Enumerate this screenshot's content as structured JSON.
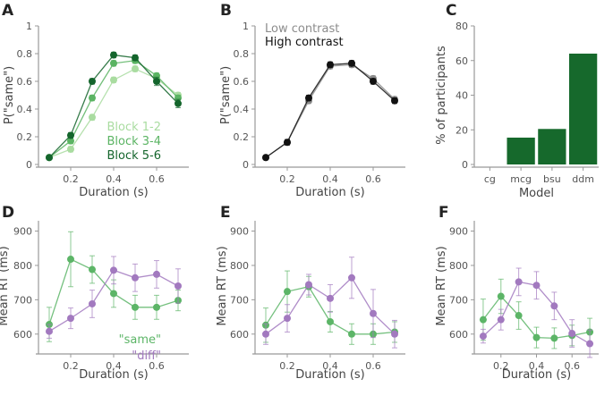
{
  "chart_data": [
    {
      "id": "A",
      "type": "line",
      "panel_label": "A",
      "xlabel": "Duration (s)",
      "ylabel": "P(\"same\")",
      "xlim": [
        0.05,
        0.75
      ],
      "ylim": [
        0,
        1
      ],
      "xticks": [
        0.2,
        0.4,
        0.6
      ],
      "xtick_labels": [
        "0.2",
        "0.4",
        "0.6"
      ],
      "yticks": [
        0,
        0.2,
        0.4,
        0.6,
        0.8,
        1
      ],
      "ytick_labels": [
        "0",
        "0.2",
        "0.4",
        "0.6",
        "0.8",
        "1"
      ],
      "x": [
        0.1,
        0.2,
        0.3,
        0.4,
        0.5,
        0.6,
        0.7
      ],
      "series": [
        {
          "name": "Block 1-2",
          "color": "#a9dca0",
          "values": [
            0.05,
            0.11,
            0.34,
            0.61,
            0.69,
            0.62,
            0.5
          ],
          "errors": [
            0.01,
            0.02,
            0.02,
            0.02,
            0.02,
            0.02,
            0.02
          ]
        },
        {
          "name": "Block 3-4",
          "color": "#5bb463",
          "values": [
            0.05,
            0.17,
            0.48,
            0.73,
            0.75,
            0.64,
            0.48
          ],
          "errors": [
            0.01,
            0.02,
            0.02,
            0.02,
            0.02,
            0.02,
            0.02
          ]
        },
        {
          "name": "Block 5-6",
          "color": "#14652c",
          "values": [
            0.05,
            0.21,
            0.6,
            0.79,
            0.77,
            0.6,
            0.44
          ],
          "errors": [
            0.01,
            0.02,
            0.02,
            0.02,
            0.02,
            0.03,
            0.03
          ]
        }
      ],
      "legend": {
        "position": "bottom-right",
        "items": [
          "Block 1-2",
          "Block 3-4",
          "Block 5-6"
        ]
      }
    },
    {
      "id": "B",
      "type": "line",
      "panel_label": "B",
      "xlabel": "Duration (s)",
      "ylabel": "P(\"same\")",
      "xlim": [
        0.05,
        0.75
      ],
      "ylim": [
        0,
        1
      ],
      "xticks": [
        0.2,
        0.4,
        0.6
      ],
      "xtick_labels": [
        "0.2",
        "0.4",
        "0.6"
      ],
      "yticks": [
        0,
        0.2,
        0.4,
        0.6,
        0.8,
        1
      ],
      "ytick_labels": [
        "0",
        "0.2",
        "0.4",
        "0.6",
        "0.8",
        "1"
      ],
      "x": [
        0.1,
        0.2,
        0.3,
        0.4,
        0.5,
        0.6,
        0.7
      ],
      "series": [
        {
          "name": "Low contrast",
          "color": "#8c8c8c",
          "values": [
            0.05,
            0.16,
            0.46,
            0.71,
            0.72,
            0.62,
            0.47
          ],
          "errors": [
            0.01,
            0.02,
            0.02,
            0.02,
            0.02,
            0.02,
            0.02
          ]
        },
        {
          "name": "High contrast",
          "color": "#111111",
          "values": [
            0.05,
            0.16,
            0.48,
            0.72,
            0.73,
            0.6,
            0.46
          ],
          "errors": [
            0.01,
            0.02,
            0.02,
            0.02,
            0.02,
            0.02,
            0.02
          ]
        }
      ],
      "legend": {
        "position": "top-left",
        "items": [
          "Low contrast",
          "High contrast"
        ]
      }
    },
    {
      "id": "C",
      "type": "bar",
      "panel_label": "C",
      "xlabel": "Model",
      "ylabel": "% of participants",
      "ylim": [
        0,
        80
      ],
      "yticks": [
        0,
        20,
        40,
        60,
        80
      ],
      "ytick_labels": [
        "0",
        "20",
        "40",
        "60",
        "80"
      ],
      "categories": [
        "cg",
        "mcg",
        "bsu",
        "ddm"
      ],
      "values": [
        0,
        15.5,
        20.5,
        64
      ],
      "color": "#16692c"
    },
    {
      "id": "D",
      "type": "line",
      "panel_label": "D",
      "xlabel": "Duration (s)",
      "ylabel": "Mean RT (ms)",
      "xlim": [
        0.05,
        0.75
      ],
      "ylim": [
        550,
        930
      ],
      "xticks": [
        0.2,
        0.4,
        0.6
      ],
      "xtick_labels": [
        "0.2",
        "0.4",
        "0.6"
      ],
      "yticks": [
        600,
        700,
        800,
        900
      ],
      "ytick_labels": [
        "600",
        "700",
        "800",
        "900"
      ],
      "x": [
        0.1,
        0.2,
        0.3,
        0.4,
        0.5,
        0.6,
        0.7
      ],
      "series": [
        {
          "name": "\"same\"",
          "color": "#5cb567",
          "values": [
            628,
            818,
            788,
            718,
            678,
            678,
            698
          ],
          "errors": [
            50,
            80,
            40,
            40,
            35,
            35,
            30
          ]
        },
        {
          "name": "\"diff\"",
          "color": "#a279bf",
          "values": [
            608,
            646,
            688,
            786,
            764,
            774,
            740
          ],
          "errors": [
            20,
            30,
            40,
            40,
            40,
            40,
            50
          ]
        }
      ],
      "legend": {
        "position": "bottom-right",
        "items": [
          "\"same\"",
          "\"diff\""
        ]
      }
    },
    {
      "id": "E",
      "type": "line",
      "panel_label": "E",
      "xlabel": "Duration (s)",
      "ylabel": "Mean RT (ms)",
      "xlim": [
        0.05,
        0.75
      ],
      "ylim": [
        550,
        930
      ],
      "xticks": [
        0.2,
        0.4,
        0.6
      ],
      "xtick_labels": [
        "0.2",
        "0.4",
        "0.6"
      ],
      "yticks": [
        600,
        700,
        800,
        900
      ],
      "ytick_labels": [
        "600",
        "700",
        "800",
        "900"
      ],
      "x": [
        0.1,
        0.2,
        0.3,
        0.4,
        0.5,
        0.6,
        0.7
      ],
      "series": [
        {
          "name": "\"same\"",
          "color": "#5cb567",
          "values": [
            626,
            724,
            738,
            636,
            600,
            600,
            606
          ],
          "errors": [
            50,
            60,
            30,
            30,
            30,
            30,
            30
          ]
        },
        {
          "name": "\"diff\"",
          "color": "#a279bf",
          "values": [
            600,
            646,
            744,
            704,
            764,
            660,
            600
          ],
          "errors": [
            30,
            40,
            30,
            40,
            60,
            70,
            40
          ]
        }
      ]
    },
    {
      "id": "F",
      "type": "line",
      "panel_label": "F",
      "xlabel": "Duration (s)",
      "ylabel": "Mean RT (ms)",
      "xlim": [
        0.05,
        0.75
      ],
      "ylim": [
        550,
        930
      ],
      "xticks": [
        0.2,
        0.4,
        0.6
      ],
      "xtick_labels": [
        "0.2",
        "0.4",
        "0.6"
      ],
      "yticks": [
        600,
        700,
        800,
        900
      ],
      "ytick_labels": [
        "600",
        "700",
        "800",
        "900"
      ],
      "x": [
        0.1,
        0.2,
        0.3,
        0.4,
        0.5,
        0.6,
        0.7
      ],
      "series": [
        {
          "name": "\"same\"",
          "color": "#5cb567",
          "values": [
            642,
            710,
            654,
            590,
            588,
            596,
            606
          ],
          "errors": [
            60,
            50,
            40,
            30,
            30,
            30,
            40
          ]
        },
        {
          "name": "\"diff\"",
          "color": "#a279bf",
          "values": [
            594,
            642,
            752,
            742,
            682,
            602,
            572
          ],
          "errors": [
            20,
            30,
            40,
            40,
            40,
            40,
            40
          ]
        }
      ]
    }
  ]
}
